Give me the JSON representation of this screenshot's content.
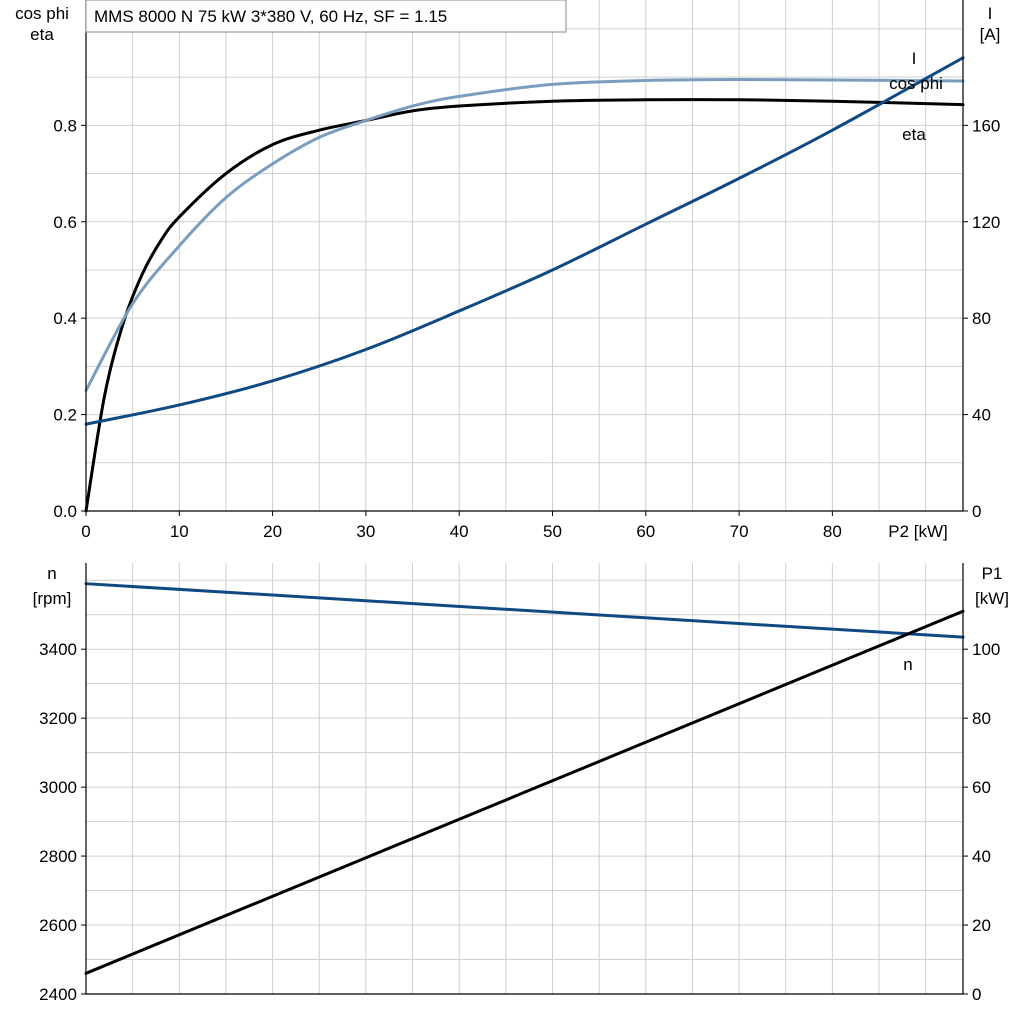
{
  "chart_data": [
    {
      "type": "line",
      "title": "MMS 8000 N   75 kW   3*380 V, 60 Hz, SF = 1.15",
      "xlabel": "P2 [kW]",
      "ylabel_left": [
        "cos phi",
        "eta"
      ],
      "ylabel_right": [
        "I",
        "[A]"
      ],
      "xlim": [
        0,
        94
      ],
      "ylim_left": [
        0,
        1.06
      ],
      "ylim_right": [
        0,
        212
      ],
      "x_ticks": [
        "0",
        "10",
        "20",
        "30",
        "40",
        "50",
        "60",
        "70",
        "80"
      ],
      "y_left_ticks": [
        "0.0",
        "0.2",
        "0.4",
        "0.6",
        "0.8"
      ],
      "y_right_ticks": [
        "0",
        "40",
        "80",
        "120",
        "160"
      ],
      "grid": true,
      "series": [
        {
          "name": "eta",
          "axis": "left",
          "color": "#000000",
          "x": [
            0,
            2,
            4,
            6,
            8,
            10,
            15,
            20,
            25,
            30,
            35,
            40,
            50,
            60,
            70,
            80,
            94
          ],
          "y": [
            0.0,
            0.24,
            0.39,
            0.49,
            0.56,
            0.61,
            0.7,
            0.76,
            0.79,
            0.81,
            0.83,
            0.84,
            0.85,
            0.853,
            0.853,
            0.85,
            0.843
          ]
        },
        {
          "name": "cos phi",
          "axis": "left",
          "color": "#7a9dbf",
          "x": [
            0,
            5,
            10,
            15,
            20,
            25,
            30,
            35,
            40,
            50,
            60,
            70,
            80,
            94
          ],
          "y": [
            0.25,
            0.43,
            0.55,
            0.65,
            0.72,
            0.775,
            0.81,
            0.84,
            0.86,
            0.885,
            0.893,
            0.895,
            0.894,
            0.892
          ]
        },
        {
          "name": "I",
          "axis": "right",
          "color": "#0f4a82",
          "x": [
            0,
            10,
            20,
            30,
            40,
            50,
            60,
            70,
            80,
            94
          ],
          "y": [
            36,
            44,
            54,
            67,
            83,
            100,
            119,
            138,
            158,
            188
          ]
        }
      ]
    },
    {
      "type": "line",
      "xlabel": "",
      "ylabel_left": [
        "n",
        "[rpm]"
      ],
      "ylabel_right": [
        "P1",
        "[kW]"
      ],
      "xlim": [
        0,
        94
      ],
      "ylim_left": [
        2400,
        3650
      ],
      "ylim_right": [
        0,
        125
      ],
      "y_left_ticks": [
        "2400",
        "2600",
        "2800",
        "3000",
        "3200",
        "3400"
      ],
      "y_right_ticks": [
        "0",
        "20",
        "40",
        "60",
        "80",
        "100"
      ],
      "grid": true,
      "series": [
        {
          "name": "n",
          "axis": "left",
          "color": "#0f4a82",
          "x": [
            0,
            94
          ],
          "y": [
            3590,
            3435
          ]
        },
        {
          "axis": "right",
          "color": "#000000",
          "x": [
            0,
            94
          ],
          "y": [
            6,
            111
          ]
        }
      ]
    }
  ]
}
